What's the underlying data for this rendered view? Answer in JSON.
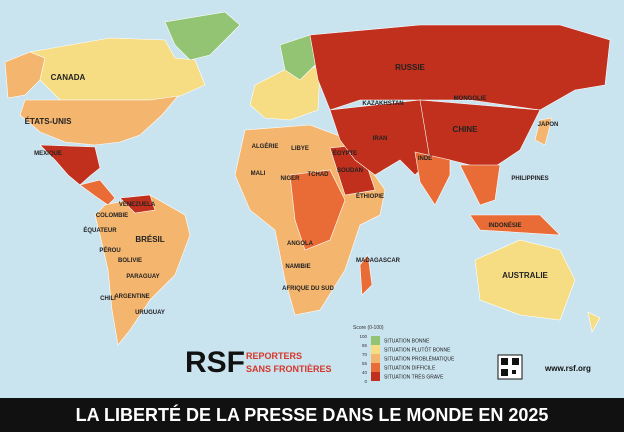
{
  "header": {
    "title": "LA LIBERTÉ DE LA PRESSE DANS LE MONDE EN 2025"
  },
  "legend": {
    "title": "Score (0-100)",
    "ticks": [
      100,
      85,
      70,
      55,
      40,
      0
    ],
    "items": [
      {
        "label": "SITUATION BONNE",
        "color": "#93c473"
      },
      {
        "label": "SITUATION PLUTÔT BONNE",
        "color": "#f6dd83"
      },
      {
        "label": "SITUATION PROBLÉMATIQUE",
        "color": "#f4b56f"
      },
      {
        "label": "SITUATION DIFFICILE",
        "color": "#e96b36"
      },
      {
        "label": "SITUATION TRÈS GRAVE",
        "color": "#c0301d"
      }
    ]
  },
  "brand": {
    "logo": "RSF",
    "name_line1": "REPORTERS",
    "name_line2": "SANS FRONTIÈRES",
    "website": "www.rsf.org"
  },
  "countries": [
    "CANADA",
    "ÉTATS-UNIS",
    "MEXIQUE",
    "VENEZUELA",
    "COLOMBIE",
    "ÉQUATEUR",
    "PÉROU",
    "BRÉSIL",
    "BOLIVIE",
    "PARAGUAY",
    "CHILI",
    "ARGENTINE",
    "URUGUAY",
    "RUSSIE",
    "KAZAKHSTAN",
    "MONGOLIE",
    "CHINE",
    "INDE",
    "IRAN",
    "JAPON",
    "PHILIPPINES",
    "INDONÉSIE",
    "AUSTRALIE",
    "ALGÉRIE",
    "LIBYE",
    "ÉGYPTE",
    "MALI",
    "NIGER",
    "TCHAD",
    "SOUDAN",
    "ÉTHIOPIE",
    "ANGOLA",
    "NAMIBIE",
    "AFRIQUE DU SUD",
    "MADAGASCAR"
  ]
}
